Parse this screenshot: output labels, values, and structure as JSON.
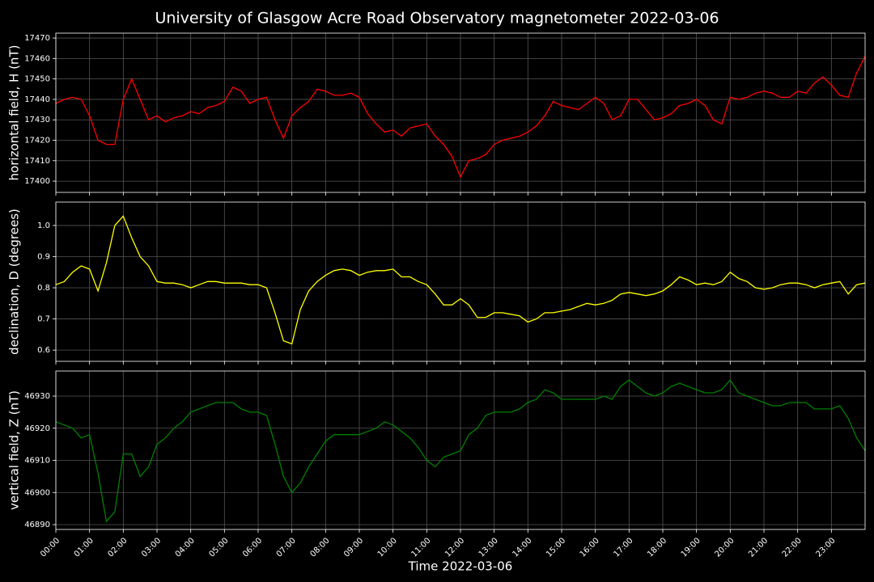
{
  "title": "University of Glasgow Acre Road Observatory magnetometer 2022-03-06",
  "chart_data": [
    {
      "type": "line",
      "ylabel": "horizontal field, H (nT)",
      "color": "#ff0000",
      "grid": true,
      "xlim": [
        0,
        24
      ],
      "ylim": [
        17394.5,
        17472.4
      ],
      "yticks": [
        17400,
        17410,
        17420,
        17430,
        17440,
        17450,
        17460,
        17470
      ],
      "x": [
        0,
        0.25,
        0.5,
        0.75,
        1,
        1.25,
        1.5,
        1.75,
        2,
        2.25,
        2.5,
        2.75,
        3,
        3.25,
        3.5,
        3.75,
        4,
        4.25,
        4.5,
        4.75,
        5,
        5.25,
        5.5,
        5.75,
        6,
        6.25,
        6.5,
        6.75,
        7,
        7.25,
        7.5,
        7.75,
        8,
        8.25,
        8.5,
        8.75,
        9,
        9.25,
        9.5,
        9.75,
        10,
        10.25,
        10.5,
        10.75,
        11,
        11.25,
        11.5,
        11.75,
        12,
        12.25,
        12.5,
        12.75,
        13,
        13.25,
        13.5,
        13.75,
        14,
        14.25,
        14.5,
        14.75,
        15,
        15.25,
        15.5,
        15.75,
        16,
        16.25,
        16.5,
        16.75,
        17,
        17.25,
        17.5,
        17.75,
        18,
        18.25,
        18.5,
        18.75,
        19,
        19.25,
        19.5,
        19.75,
        20,
        20.25,
        20.5,
        20.75,
        21,
        21.25,
        21.5,
        21.75,
        22,
        22.25,
        22.5,
        22.75,
        23,
        23.25,
        23.5,
        23.75,
        24
      ],
      "values": [
        17438,
        17440,
        17441,
        17440,
        17432,
        17420,
        17418,
        17418,
        17440,
        17450,
        17440,
        17430,
        17432,
        17429,
        17431,
        17432,
        17434,
        17433,
        17436,
        17437,
        17439,
        17446,
        17444,
        17438,
        17440,
        17441,
        17430,
        17421,
        17432,
        17436,
        17439,
        17445,
        17444,
        17442,
        17442,
        17443,
        17441,
        17433,
        17428,
        17424,
        17425,
        17422,
        17426,
        17427,
        17428,
        17422,
        17418,
        17412,
        17402,
        17410,
        17411,
        17413,
        17418,
        17420,
        17421,
        17422,
        17424,
        17427,
        17432,
        17439,
        17437,
        17436,
        17435,
        17438,
        17441,
        17438,
        17430,
        17432,
        17440,
        17440,
        17435,
        17430,
        17431,
        17433,
        17437,
        17438,
        17440,
        17437,
        17430,
        17428,
        17441,
        17440,
        17441,
        17443,
        17444,
        17443,
        17441,
        17441,
        17444,
        17443,
        17448,
        17451,
        17447,
        17442,
        17441,
        17453,
        17461
      ]
    },
    {
      "type": "line",
      "ylabel": "declination, D (degrees)",
      "color": "#ffff00",
      "grid": true,
      "xlim": [
        0,
        24
      ],
      "ylim": [
        0.564,
        1.075
      ],
      "yticks": [
        0.6,
        0.7,
        0.8,
        0.9,
        {
          "value": 1,
          "label": "1.0"
        }
      ],
      "x": [
        0,
        0.25,
        0.5,
        0.75,
        1,
        1.25,
        1.5,
        1.75,
        2,
        2.25,
        2.5,
        2.75,
        3,
        3.25,
        3.5,
        3.75,
        4,
        4.25,
        4.5,
        4.75,
        5,
        5.25,
        5.5,
        5.75,
        6,
        6.25,
        6.5,
        6.75,
        7,
        7.25,
        7.5,
        7.75,
        8,
        8.25,
        8.5,
        8.75,
        9,
        9.25,
        9.5,
        9.75,
        10,
        10.25,
        10.5,
        10.75,
        11,
        11.25,
        11.5,
        11.75,
        12,
        12.25,
        12.5,
        12.75,
        13,
        13.25,
        13.5,
        13.75,
        14,
        14.25,
        14.5,
        14.75,
        15,
        15.25,
        15.5,
        15.75,
        16,
        16.25,
        16.5,
        16.75,
        17,
        17.25,
        17.5,
        17.75,
        18,
        18.25,
        18.5,
        18.75,
        19,
        19.25,
        19.5,
        19.75,
        20,
        20.25,
        20.5,
        20.75,
        21,
        21.25,
        21.5,
        21.75,
        22,
        22.25,
        22.5,
        22.75,
        23,
        23.25,
        23.5,
        23.75,
        24
      ],
      "values": [
        0.81,
        0.82,
        0.85,
        0.87,
        0.86,
        0.79,
        0.88,
        1.0,
        1.03,
        0.96,
        0.9,
        0.87,
        0.82,
        0.815,
        0.815,
        0.81,
        0.8,
        0.81,
        0.82,
        0.82,
        0.815,
        0.815,
        0.815,
        0.81,
        0.81,
        0.8,
        0.72,
        0.63,
        0.62,
        0.73,
        0.79,
        0.82,
        0.84,
        0.855,
        0.86,
        0.855,
        0.84,
        0.85,
        0.855,
        0.855,
        0.86,
        0.835,
        0.835,
        0.82,
        0.81,
        0.78,
        0.745,
        0.745,
        0.765,
        0.745,
        0.705,
        0.705,
        0.72,
        0.72,
        0.715,
        0.71,
        0.69,
        0.7,
        0.72,
        0.72,
        0.725,
        0.73,
        0.74,
        0.75,
        0.745,
        0.75,
        0.76,
        0.78,
        0.785,
        0.78,
        0.775,
        0.78,
        0.79,
        0.81,
        0.835,
        0.825,
        0.81,
        0.815,
        0.81,
        0.82,
        0.85,
        0.83,
        0.82,
        0.8,
        0.795,
        0.8,
        0.81,
        0.815,
        0.815,
        0.81,
        0.8,
        0.81,
        0.815,
        0.82,
        0.78,
        0.81,
        0.815
      ]
    },
    {
      "type": "line",
      "ylabel": "vertical field, Z (nT)",
      "xlabel": "Time 2022-03-06",
      "color": "#008000",
      "grid": true,
      "xlim": [
        0,
        24
      ],
      "ylim": [
        46888.5,
        46937.8
      ],
      "yticks": [
        46890,
        46900,
        46910,
        46920,
        46930
      ],
      "xticks": [
        {
          "value": 0,
          "label": "00:00"
        },
        {
          "value": 1,
          "label": "01:00"
        },
        {
          "value": 2,
          "label": "02:00"
        },
        {
          "value": 3,
          "label": "03:00"
        },
        {
          "value": 4,
          "label": "04:00"
        },
        {
          "value": 5,
          "label": "05:00"
        },
        {
          "value": 6,
          "label": "06:00"
        },
        {
          "value": 7,
          "label": "07:00"
        },
        {
          "value": 8,
          "label": "08:00"
        },
        {
          "value": 9,
          "label": "09:00"
        },
        {
          "value": 10,
          "label": "10:00"
        },
        {
          "value": 11,
          "label": "11:00"
        },
        {
          "value": 12,
          "label": "12:00"
        },
        {
          "value": 13,
          "label": "13:00"
        },
        {
          "value": 14,
          "label": "14:00"
        },
        {
          "value": 15,
          "label": "15:00"
        },
        {
          "value": 16,
          "label": "16:00"
        },
        {
          "value": 17,
          "label": "17:00"
        },
        {
          "value": 18,
          "label": "18:00"
        },
        {
          "value": 19,
          "label": "19:00"
        },
        {
          "value": 20,
          "label": "20:00"
        },
        {
          "value": 21,
          "label": "21:00"
        },
        {
          "value": 22,
          "label": "22:00"
        },
        {
          "value": 23,
          "label": "23:00"
        }
      ],
      "x": [
        0,
        0.25,
        0.5,
        0.75,
        1,
        1.25,
        1.5,
        1.75,
        2,
        2.25,
        2.5,
        2.75,
        3,
        3.25,
        3.5,
        3.75,
        4,
        4.25,
        4.5,
        4.75,
        5,
        5.25,
        5.5,
        5.75,
        6,
        6.25,
        6.5,
        6.75,
        7,
        7.25,
        7.5,
        7.75,
        8,
        8.25,
        8.5,
        8.75,
        9,
        9.25,
        9.5,
        9.75,
        10,
        10.25,
        10.5,
        10.75,
        11,
        11.25,
        11.5,
        11.75,
        12,
        12.25,
        12.5,
        12.75,
        13,
        13.25,
        13.5,
        13.75,
        14,
        14.25,
        14.5,
        14.75,
        15,
        15.25,
        15.5,
        15.75,
        16,
        16.25,
        16.5,
        16.75,
        17,
        17.25,
        17.5,
        17.75,
        18,
        18.25,
        18.5,
        18.75,
        19,
        19.25,
        19.5,
        19.75,
        20,
        20.25,
        20.5,
        20.75,
        21,
        21.25,
        21.5,
        21.75,
        22,
        22.25,
        22.5,
        22.75,
        23,
        23.25,
        23.5,
        23.75,
        24
      ],
      "values": [
        46922,
        46921,
        46920,
        46917,
        46918,
        46906,
        46891,
        46894,
        46912,
        46912,
        46905,
        46908,
        46915,
        46917,
        46920,
        46922,
        46925,
        46926,
        46927,
        46928,
        46928,
        46928,
        46926,
        46925,
        46925,
        46924,
        46915,
        46905,
        46900,
        46903,
        46908,
        46912,
        46916,
        46918,
        46918,
        46918,
        46918,
        46919,
        46920,
        46922,
        46921,
        46919,
        46917,
        46914,
        46910,
        46908,
        46911,
        46912,
        46913,
        46918,
        46920,
        46924,
        46925,
        46925,
        46925,
        46926,
        46928,
        46929,
        46932,
        46931,
        46929,
        46929,
        46929,
        46929,
        46929,
        46930,
        46929,
        46933,
        46935,
        46933,
        46931,
        46930,
        46931,
        46933,
        46934,
        46933,
        46932,
        46931,
        46931,
        46932,
        46935,
        46931,
        46930,
        46929,
        46928,
        46927,
        46927,
        46928,
        46928,
        46928,
        46926,
        46926,
        46926,
        46927,
        46923,
        46917,
        46913
      ]
    }
  ]
}
